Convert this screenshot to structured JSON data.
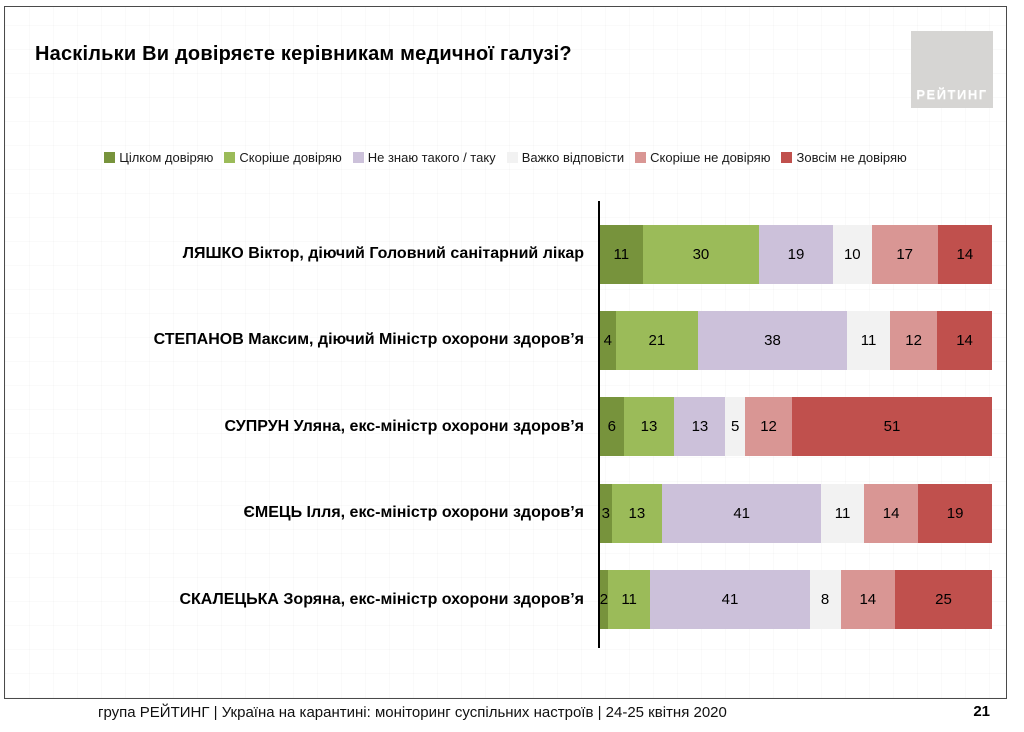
{
  "title": "Наскільки Ви довіряєте керівникам медичної галузі?",
  "logo_text": "РЕЙТИНГ",
  "footer": {
    "text": "група РЕЙТИНГ | Україна на карантині: моніторинг суспільних настроїв  | 24-25 квітня  2020",
    "page": "21"
  },
  "chart_data": {
    "type": "bar",
    "orientation": "horizontal",
    "stacked": true,
    "unit": "percent",
    "value_labels": true,
    "legend_position": "top",
    "title": "Наскільки Ви довіряєте керівникам медичної галузі?",
    "categories": [
      "ЛЯШКО Віктор, діючий Головний санітарний лікар",
      "СТЕПАНОВ Максим, діючий Міністр охорони здоров’я",
      "СУПРУН Уляна, екс-міністр охорони здоров’я",
      "ЄМЕЦЬ Ілля, екс-міністр охорони здоров’я",
      "СКАЛЕЦЬКА Зоряна, екс-міністр охорони здоров’я"
    ],
    "series": [
      {
        "name": "Цілком довіряю",
        "color": "#77933C",
        "values": [
          11,
          4,
          6,
          3,
          2
        ]
      },
      {
        "name": "Скоріше довіряю",
        "color": "#9BBB59",
        "values": [
          30,
          21,
          13,
          13,
          11
        ]
      },
      {
        "name": "Не знаю такого / таку",
        "color": "#CCC1DA",
        "values": [
          19,
          38,
          13,
          41,
          41
        ]
      },
      {
        "name": "Важко відповісти",
        "color": "#F2F2F2",
        "values": [
          10,
          11,
          5,
          11,
          8
        ]
      },
      {
        "name": "Скоріше не довіряю",
        "color": "#D99694",
        "values": [
          17,
          12,
          12,
          14,
          14
        ]
      },
      {
        "name": "Зовсім не довіряю",
        "color": "#C0504D",
        "values": [
          14,
          14,
          51,
          19,
          25
        ]
      }
    ]
  }
}
